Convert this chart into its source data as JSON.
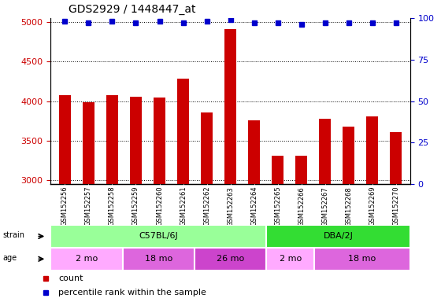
{
  "title": "GDS2929 / 1448447_at",
  "samples": [
    "GSM152256",
    "GSM152257",
    "GSM152258",
    "GSM152259",
    "GSM152260",
    "GSM152261",
    "GSM152262",
    "GSM152263",
    "GSM152264",
    "GSM152265",
    "GSM152266",
    "GSM152267",
    "GSM152268",
    "GSM152269",
    "GSM152270"
  ],
  "counts": [
    4080,
    3990,
    4080,
    4060,
    4050,
    4280,
    3860,
    4910,
    3760,
    3310,
    3310,
    3780,
    3680,
    3810,
    3610
  ],
  "percentile_ranks": [
    98,
    97,
    98,
    97,
    98,
    97,
    98,
    99,
    97,
    97,
    96,
    97,
    97,
    97,
    97
  ],
  "bar_color": "#cc0000",
  "dot_color": "#0000cc",
  "ylim_left": [
    2950,
    5050
  ],
  "ylim_right": [
    0,
    100
  ],
  "yticks_left": [
    3000,
    3500,
    4000,
    4500,
    5000
  ],
  "yticks_right": [
    0,
    25,
    50,
    75,
    100
  ],
  "strain_groups": [
    {
      "label": "C57BL/6J",
      "start": 0,
      "end": 8,
      "color": "#99ff99"
    },
    {
      "label": "DBA/2J",
      "start": 9,
      "end": 14,
      "color": "#33dd33"
    }
  ],
  "age_groups": [
    {
      "label": "2 mo",
      "start": 0,
      "end": 2,
      "color": "#ffaaff"
    },
    {
      "label": "18 mo",
      "start": 3,
      "end": 5,
      "color": "#dd66dd"
    },
    {
      "label": "26 mo",
      "start": 6,
      "end": 8,
      "color": "#cc44cc"
    },
    {
      "label": "2 mo",
      "start": 9,
      "end": 10,
      "color": "#ffaaff"
    },
    {
      "label": "18 mo",
      "start": 11,
      "end": 14,
      "color": "#dd66dd"
    }
  ],
  "tick_label_color": "#cc0000",
  "right_tick_color": "#0000cc",
  "title_color": "#000000",
  "xticklabel_area_color": "#cccccc",
  "legend_count_color": "#cc0000",
  "legend_pct_color": "#0000cc"
}
